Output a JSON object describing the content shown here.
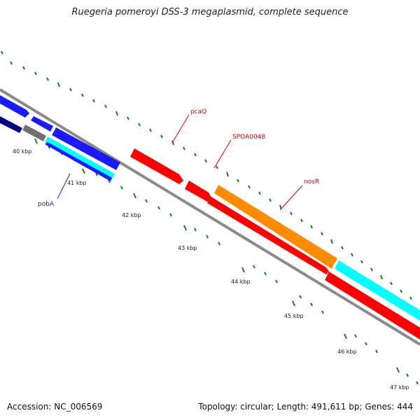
{
  "title": "Ruegeria pomeroyi DSS-3 megaplasmid, complete sequence",
  "footer": {
    "accession": "Accession: NC_006569",
    "summary": "Topology: circular; Length: 491,611 bp; Genes: 444"
  },
  "scale_labels": [
    "40 kbp",
    "41 kbp",
    "42 kbp",
    "43 kbp",
    "44 kbp",
    "45 kbp",
    "46 kbp",
    "47 kbp"
  ],
  "gene_labels": [
    {
      "text": "pcaQ",
      "color": "#d40000"
    },
    {
      "text": "SPOA0048",
      "color": "#d40000"
    },
    {
      "text": "nosR",
      "color": "#d40000"
    },
    {
      "text": "pobA",
      "color": "#1a1aaa"
    }
  ],
  "colors": {
    "backbone": "#8a8a8a",
    "tick": "#1f7a1f",
    "red_feature": "#ff0000",
    "blue_feature": "#1a1aff",
    "navy_feature": "#000080",
    "cyan_feature": "#00ffff",
    "orange_feature": "#ff8c00",
    "gray_feature": "#707070"
  }
}
